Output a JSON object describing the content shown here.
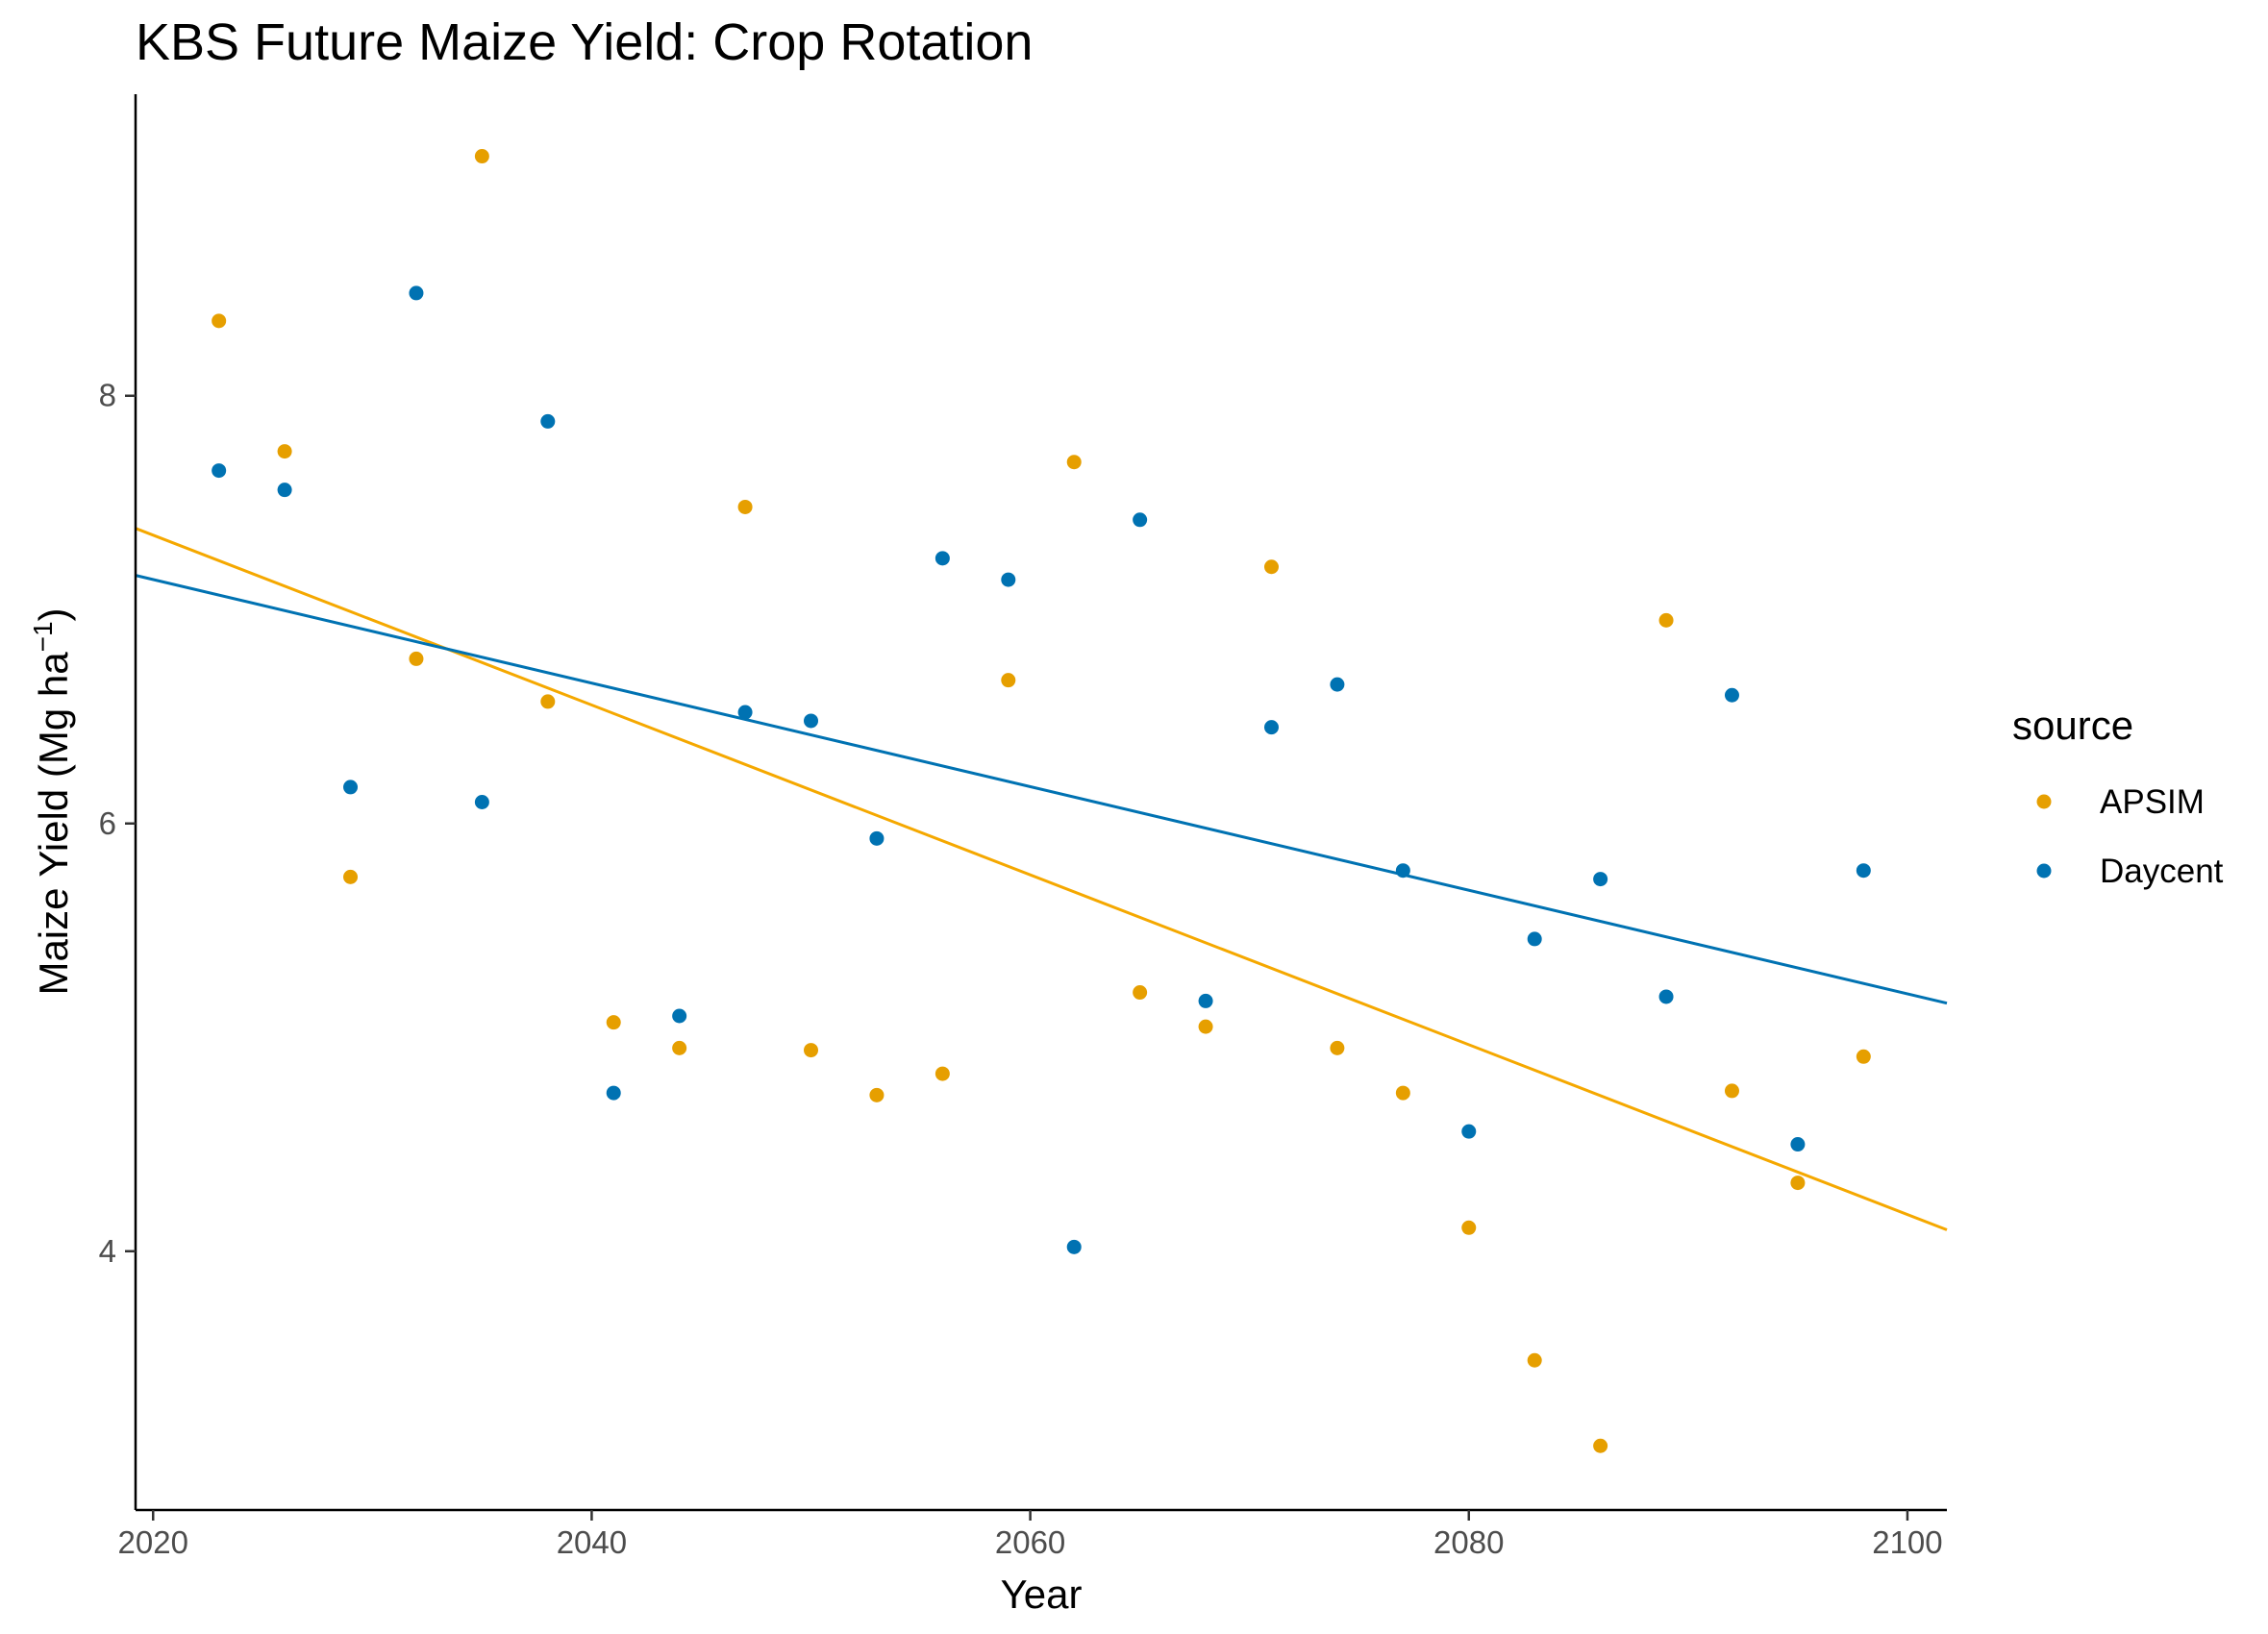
{
  "chart_data": {
    "type": "scatter",
    "title": "KBS Future Maize Yield:  Crop Rotation",
    "xlabel": "Year",
    "ylabel": "Maize Yield (Mg ha",
    "ylabel_superscript": "−1",
    "ylabel_close": ")",
    "xlim": [
      2019.2,
      2101.8
    ],
    "ylim": [
      2.79,
      9.41
    ],
    "x_ticks": [
      2020,
      2040,
      2060,
      2080,
      2100
    ],
    "y_ticks": [
      4,
      6,
      8
    ],
    "grid": false,
    "legend": {
      "title": "source",
      "position": "right"
    },
    "series": [
      {
        "name": "APSIM",
        "color": "#E69F00",
        "line_color": "#F5A800",
        "points": [
          [
            2023,
            8.35
          ],
          [
            2026,
            7.74
          ],
          [
            2029,
            5.75
          ],
          [
            2032,
            6.77
          ],
          [
            2035,
            9.12
          ],
          [
            2038,
            6.57
          ],
          [
            2041,
            5.07
          ],
          [
            2044,
            4.95
          ],
          [
            2047,
            7.48
          ],
          [
            2050,
            4.94
          ],
          [
            2053,
            4.73
          ],
          [
            2056,
            4.83
          ],
          [
            2059,
            6.67
          ],
          [
            2062,
            7.69
          ],
          [
            2065,
            5.21
          ],
          [
            2068,
            5.05
          ],
          [
            2071,
            7.2
          ],
          [
            2074,
            4.95
          ],
          [
            2077,
            4.74
          ],
          [
            2080,
            4.11
          ],
          [
            2083,
            3.49
          ],
          [
            2086,
            3.09
          ],
          [
            2089,
            6.95
          ],
          [
            2092,
            4.75
          ],
          [
            2095,
            4.32
          ],
          [
            2098,
            4.91
          ]
        ],
        "trend": {
          "x": [
            2019.2,
            2101.8
          ],
          "y": [
            7.38,
            4.1
          ]
        }
      },
      {
        "name": "Daycent",
        "color": "#0072B2",
        "line_color": "#0072B2",
        "points": [
          [
            2023,
            7.65
          ],
          [
            2026,
            7.56
          ],
          [
            2029,
            6.17
          ],
          [
            2032,
            8.48
          ],
          [
            2035,
            6.1
          ],
          [
            2038,
            7.88
          ],
          [
            2041,
            4.74
          ],
          [
            2044,
            5.1
          ],
          [
            2047,
            6.52
          ],
          [
            2050,
            6.48
          ],
          [
            2053,
            5.93
          ],
          [
            2056,
            7.24
          ],
          [
            2059,
            7.14
          ],
          [
            2062,
            4.02
          ],
          [
            2065,
            7.42
          ],
          [
            2068,
            5.17
          ],
          [
            2071,
            6.45
          ],
          [
            2074,
            6.65
          ],
          [
            2077,
            5.78
          ],
          [
            2080,
            4.56
          ],
          [
            2083,
            5.46
          ],
          [
            2086,
            5.74
          ],
          [
            2089,
            5.19
          ],
          [
            2092,
            6.6
          ],
          [
            2095,
            4.5
          ],
          [
            2098,
            5.78
          ]
        ],
        "trend": {
          "x": [
            2019.2,
            2101.8
          ],
          "y": [
            7.16,
            5.16
          ]
        }
      }
    ]
  }
}
